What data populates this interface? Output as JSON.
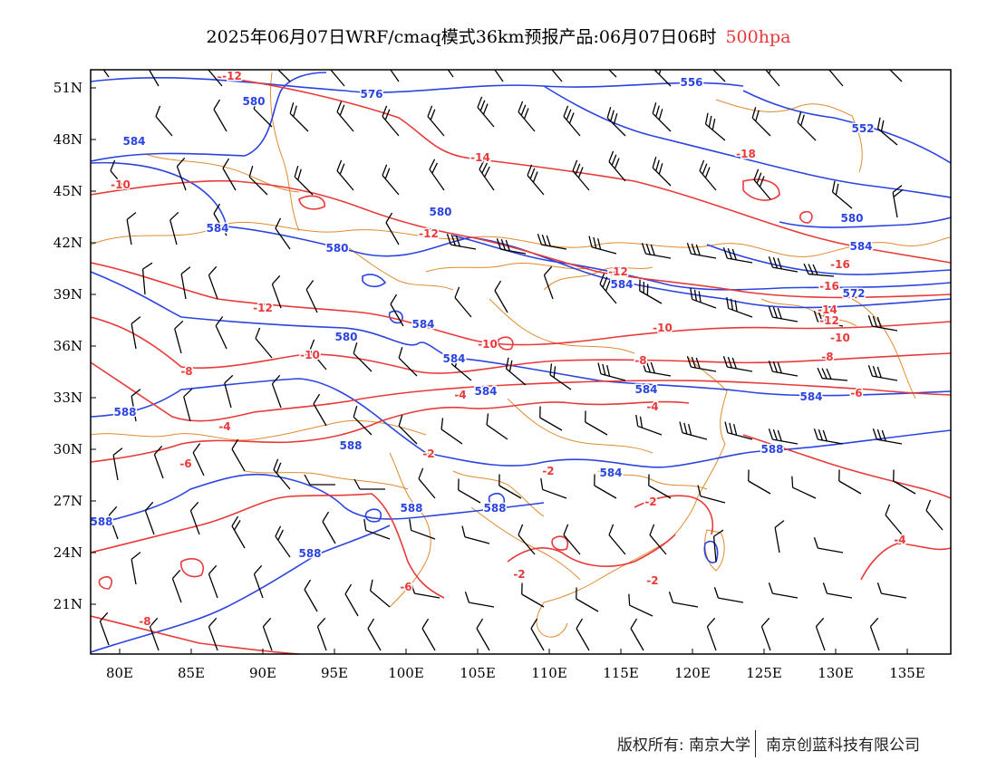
{
  "title": {
    "main": "2025年06月07日WRF/cmaq模式36km预报产品:06月07日06时",
    "level": "500hpa"
  },
  "colors": {
    "height_contour": "#2b44e0",
    "temp_contour": "#e83a3a",
    "coastline": "#e08a2e",
    "wind_barb": "#000000"
  },
  "axes": {
    "lon_labels": [
      "80E",
      "85E",
      "90E",
      "95E",
      "100E",
      "105E",
      "110E",
      "115E",
      "120E",
      "125E",
      "130E",
      "135E"
    ],
    "lat_labels": [
      "51N",
      "48N",
      "45N",
      "42N",
      "39N",
      "36N",
      "33N",
      "30N",
      "27N",
      "24N",
      "21N"
    ]
  },
  "height_labels": [
    "576",
    "580",
    "584",
    "556",
    "552",
    "580",
    "584",
    "580",
    "584",
    "584",
    "580",
    "584",
    "584",
    "584",
    "584",
    "588",
    "588",
    "584",
    "588",
    "588",
    "588",
    "588",
    "580",
    "572",
    "584",
    "588"
  ],
  "temp_labels": [
    "-12",
    "-10",
    "-14",
    "-16",
    "-12",
    "-12",
    "-12",
    "-10",
    "-10",
    "-8",
    "-10",
    "-8",
    "-4",
    "-2",
    "-2",
    "-2",
    "-2",
    "-2",
    "-6",
    "-6",
    "-8",
    "-4",
    "-18",
    "-16",
    "-14",
    "-12",
    "-10",
    "-8",
    "-6",
    "-4",
    "-4"
  ],
  "footer": {
    "copyright": "版权所有: 南京大学",
    "company": "南京创蓝科技有限公司"
  }
}
